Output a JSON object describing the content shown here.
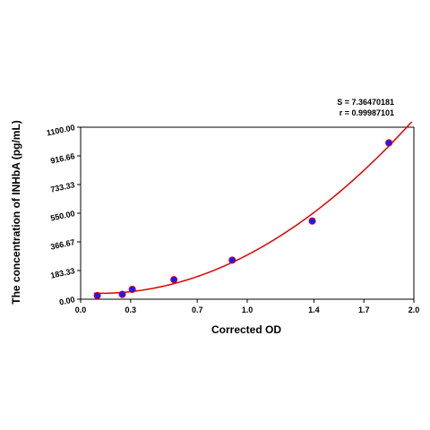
{
  "chart_data": {
    "type": "scatter",
    "title": "",
    "xlabel": "Corrected OD",
    "ylabel": "The concentration of INHbA (pg/mL)",
    "stats": [
      "S = 7.36470181",
      "r = 0.99987101"
    ],
    "xlim": [
      0.0,
      2.0
    ],
    "ylim": [
      0.0,
      1100.0
    ],
    "xticks": [
      0.0,
      0.3,
      0.7,
      1.0,
      1.4,
      1.7,
      2.0
    ],
    "xtick_labels": [
      "0.0",
      "0.3",
      "0.7",
      "1.0",
      "1.4",
      "1.7",
      "2.0"
    ],
    "yticks": [
      0.0,
      183.33,
      366.67,
      550.0,
      733.33,
      916.66,
      1100.0
    ],
    "ytick_labels": [
      "0.00",
      "183.33",
      "366.67",
      "550.00",
      "733.33",
      "916.66",
      "1100.00"
    ],
    "grid": false,
    "series": [
      {
        "x": [
          0.1,
          0.25,
          0.31,
          0.56,
          0.91,
          1.39,
          1.85
        ],
        "y": [
          23,
          31,
          63,
          125,
          250,
          500,
          1000
        ],
        "marker_color": "#1a1aff",
        "fit_color": "#e00000"
      }
    ]
  }
}
